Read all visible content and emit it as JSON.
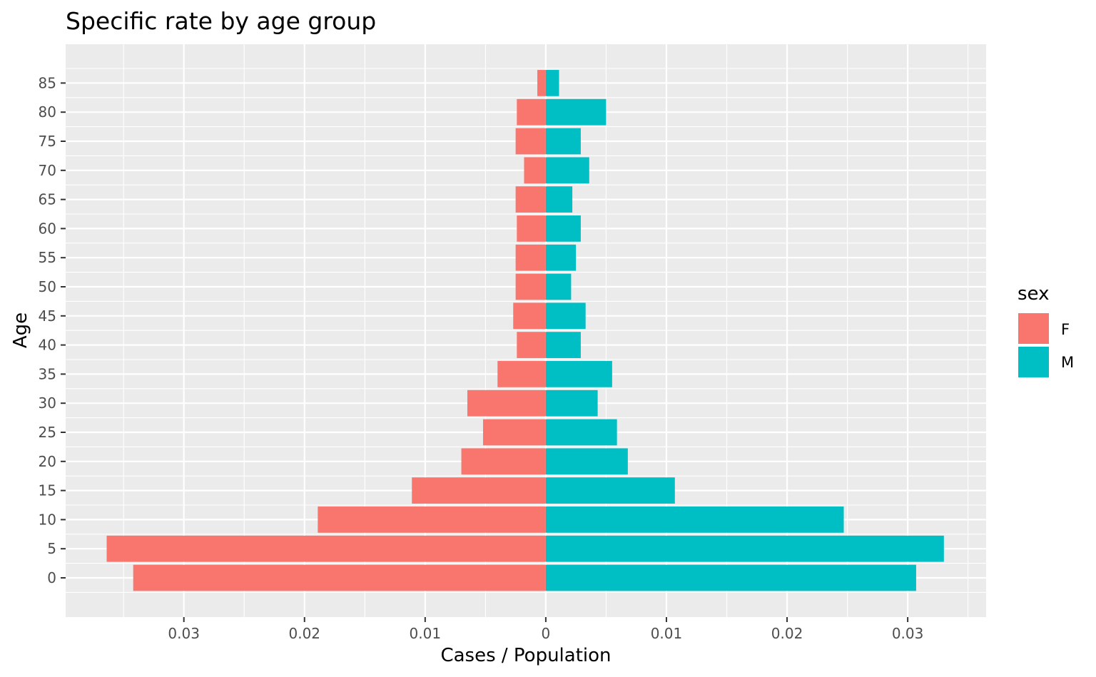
{
  "chart_data": {
    "type": "bar",
    "orientation": "horizontal-pyramid",
    "title": "Specific rate by age group",
    "xlabel": "Cases / Population",
    "ylabel": "Age",
    "categories": [
      "0",
      "5",
      "10",
      "15",
      "20",
      "25",
      "30",
      "35",
      "40",
      "45",
      "50",
      "55",
      "60",
      "65",
      "70",
      "75",
      "80",
      "85"
    ],
    "series": [
      {
        "name": "F",
        "color": "#F8766D",
        "side": "left",
        "values": [
          0.0342,
          0.0364,
          0.0189,
          0.0111,
          0.007,
          0.0052,
          0.0065,
          0.004,
          0.0024,
          0.0027,
          0.0025,
          0.0025,
          0.0024,
          0.0025,
          0.0018,
          0.0025,
          0.0024,
          0.0007
        ]
      },
      {
        "name": "M",
        "color": "#00BFC4",
        "side": "right",
        "values": [
          0.0307,
          0.033,
          0.0247,
          0.0107,
          0.0068,
          0.0059,
          0.0043,
          0.0055,
          0.0029,
          0.0033,
          0.0021,
          0.0025,
          0.0029,
          0.0022,
          0.0036,
          0.0029,
          0.005,
          0.0011
        ]
      }
    ],
    "xlim": [
      -0.0398,
      0.0365
    ],
    "x_ticks": [
      -0.03,
      -0.02,
      -0.01,
      0,
      0.01,
      0.02,
      0.03
    ],
    "x_tick_labels": [
      "0.03",
      "0.02",
      "0.01",
      "0",
      "0.01",
      "0.02",
      "0.03"
    ],
    "legend": {
      "title": "sex",
      "position": "right"
    },
    "grid": true,
    "panel_background": "#EBEBEB",
    "grid_color": "#FFFFFF"
  }
}
